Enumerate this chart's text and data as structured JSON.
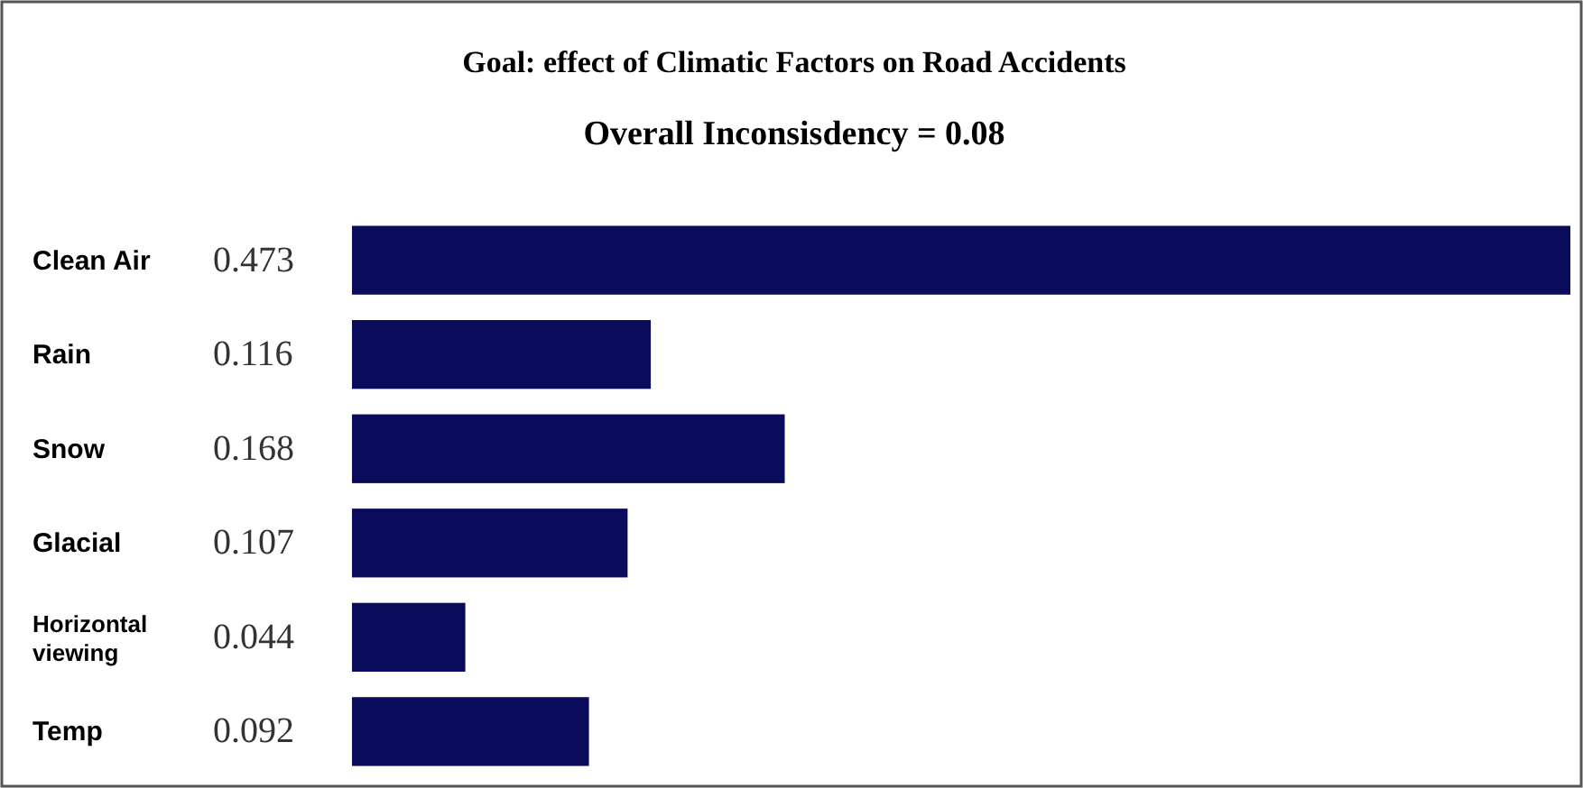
{
  "chart_data": {
    "type": "bar",
    "orientation": "horizontal",
    "title": "Goal: effect of Climatic Factors on Road Accidents",
    "subtitle": "Overall Inconsisdency = 0.08",
    "categories": [
      "Clean Air",
      "Rain",
      "Snow",
      "Glacial",
      "Horizontal viewing",
      "Temp"
    ],
    "values": [
      0.473,
      0.116,
      0.168,
      0.107,
      0.044,
      0.092
    ],
    "color": "#0b0b5c",
    "data_labels": true
  }
}
